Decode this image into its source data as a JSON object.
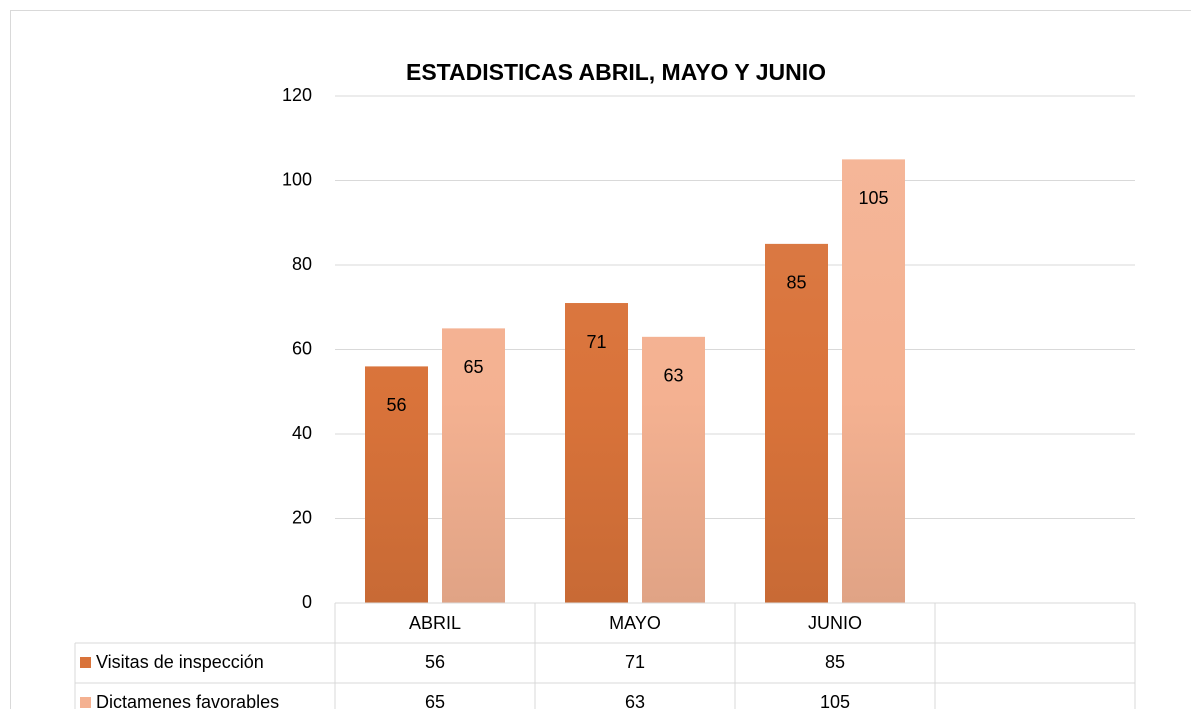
{
  "chart_data": {
    "type": "bar",
    "title": "ESTADISTICAS ABRIL, MAYO Y JUNIO",
    "categories": [
      "ABRIL",
      "MAYO",
      "JUNIO",
      null
    ],
    "series": [
      {
        "name": "Visitas de inspección",
        "color": "#d9733a",
        "values": [
          56,
          71,
          85,
          null
        ]
      },
      {
        "name": "Dictamenes favorables",
        "color": "#f4b191",
        "values": [
          65,
          63,
          105,
          null
        ]
      }
    ],
    "ylim": [
      0,
      120
    ],
    "yticks": [
      0,
      20,
      40,
      60,
      80,
      100,
      120
    ],
    "grid": true,
    "data_table": true
  }
}
